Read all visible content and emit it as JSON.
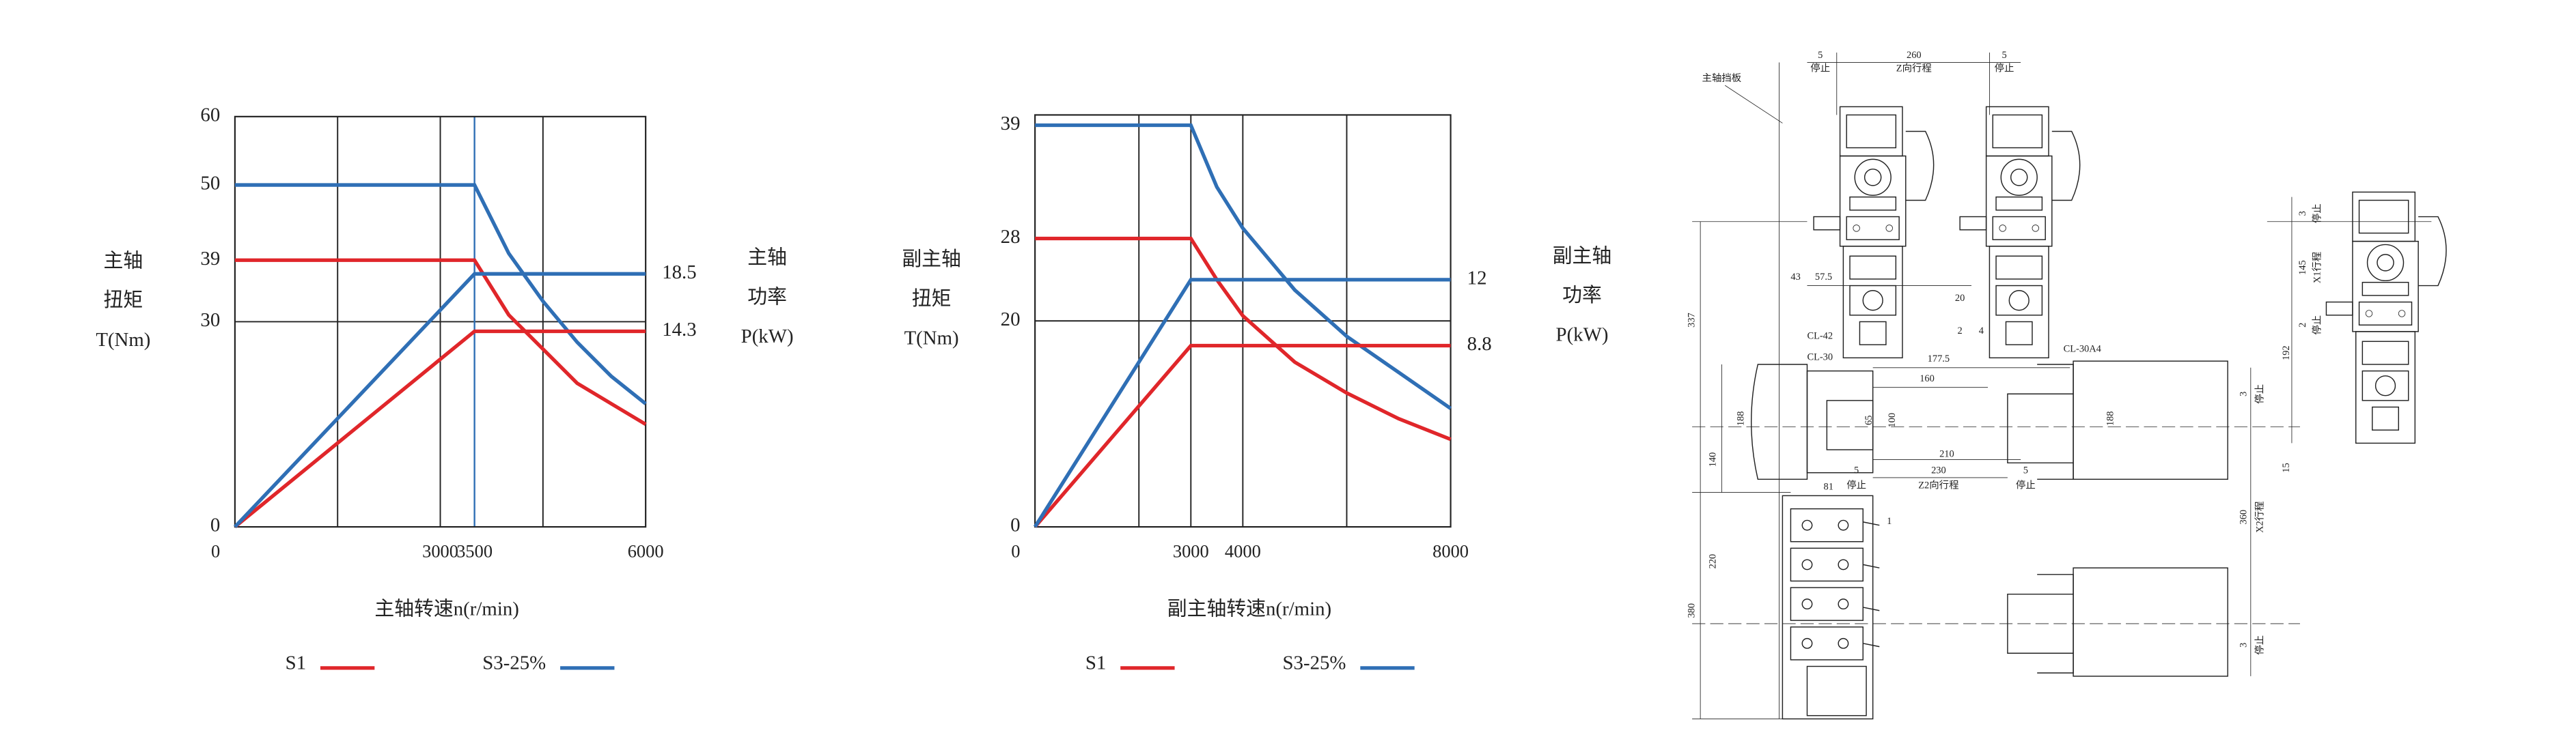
{
  "chart_data": [
    {
      "type": "line",
      "xlabel": "主轴转速n(r/min)",
      "ylabel": [
        "主轴",
        "扭矩",
        "T(Nm)"
      ],
      "y2label": [
        "主轴",
        "功率",
        "P(kW)"
      ],
      "xlim": [
        0,
        6000
      ],
      "xticks": [
        0,
        3000,
        3500,
        6000
      ],
      "xgrid": [
        1500,
        3000,
        4500
      ],
      "ylim": [
        0,
        60
      ],
      "yticks": [
        0,
        30,
        39,
        50,
        60
      ],
      "ygrid": [
        30
      ],
      "y2lim": [
        0,
        30
      ],
      "y2ticks": [
        14.3,
        18.5
      ],
      "vline": 3500,
      "vline_color": "#2f6fb5",
      "series": [
        {
          "name": "S1",
          "color": "#e0262a",
          "x": [
            0,
            3500,
            4000,
            4500,
            5000,
            5500,
            6000
          ],
          "values": [
            39,
            39,
            31,
            26,
            21,
            18,
            15
          ]
        },
        {
          "name": "S3-25%",
          "color": "#2f6fb5",
          "x": [
            0,
            3500,
            4000,
            4500,
            5000,
            5500,
            6000
          ],
          "values": [
            50,
            50,
            40,
            33,
            27,
            22,
            18
          ]
        },
        {
          "name": "S1",
          "color": "#e0262a",
          "axis": "y2",
          "x": [
            0,
            3500,
            6000
          ],
          "values": [
            0,
            14.3,
            14.3
          ]
        },
        {
          "name": "S3-25%",
          "color": "#2f6fb5",
          "axis": "y2",
          "x": [
            0,
            3500,
            6000
          ],
          "values": [
            0,
            18.5,
            18.5
          ]
        }
      ]
    },
    {
      "type": "line",
      "xlabel": "副主轴转速n(r/min)",
      "ylabel": [
        "副主轴",
        "扭矩",
        "T(Nm)"
      ],
      "y2label": [
        "副主轴",
        "功率",
        "P(kW)"
      ],
      "xlim": [
        0,
        8000
      ],
      "xticks": [
        0,
        3000,
        4000,
        8000
      ],
      "xgrid": [
        2000,
        3000,
        4000,
        6000
      ],
      "ylim": [
        0,
        40
      ],
      "yticks": [
        0,
        20,
        28,
        39
      ],
      "ygrid": [
        20
      ],
      "y2lim": [
        0,
        20
      ],
      "y2ticks": [
        8.8,
        12
      ],
      "series": [
        {
          "name": "S1",
          "color": "#e0262a",
          "x": [
            0,
            3000,
            3500,
            4000,
            5000,
            6000,
            7000,
            8000
          ],
          "values": [
            28,
            28,
            24,
            20.5,
            16,
            13,
            10.5,
            8.5
          ]
        },
        {
          "name": "S3-25%",
          "color": "#2f6fb5",
          "x": [
            0,
            3000,
            3500,
            4000,
            5000,
            6000,
            7000,
            8000
          ],
          "values": [
            39,
            39,
            33,
            29,
            23,
            18.5,
            15,
            11.5
          ]
        },
        {
          "name": "S1",
          "color": "#e0262a",
          "axis": "y2",
          "x": [
            0,
            3000,
            8000
          ],
          "values": [
            0,
            8.8,
            8.8
          ]
        },
        {
          "name": "S3-25%",
          "color": "#2f6fb5",
          "axis": "y2",
          "x": [
            0,
            3000,
            8000
          ],
          "values": [
            0,
            12,
            12
          ]
        }
      ]
    }
  ],
  "drawing": {
    "labels": [
      "主轴挡板",
      "5",
      "停止",
      "260",
      "Z向行程",
      "5",
      "停止",
      "337",
      "43",
      "57.5",
      "CL-42",
      "CL-30",
      "177.5",
      "160",
      "CL-30A4",
      "20",
      "2",
      "4",
      "188",
      "65",
      "100",
      "210",
      "230",
      "188",
      "140",
      "5",
      "停止",
      "Z2向行程",
      "5",
      "停止",
      "81",
      "1",
      "220",
      "380",
      "3",
      "停止",
      "15",
      "360",
      "X2行程",
      "3",
      "停止",
      "3",
      "停止",
      "145",
      "X1行程",
      "192",
      "2",
      "停止"
    ]
  }
}
